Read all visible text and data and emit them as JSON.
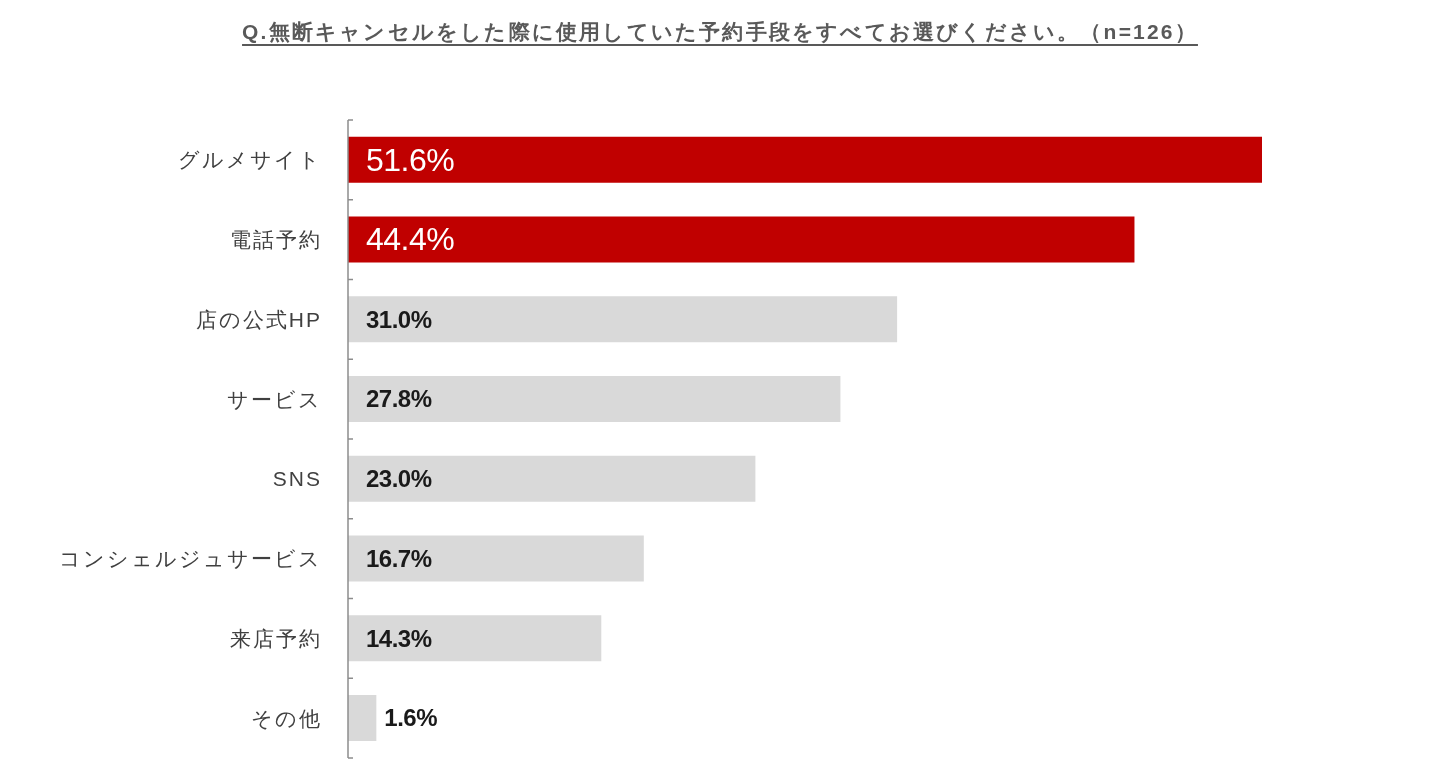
{
  "chart_data": {
    "type": "bar",
    "orientation": "horizontal",
    "title": "Q.無断キャンセルをした際に使用していた予約手段をすべてお選びください。（n=126）",
    "categories": [
      "グルメサイト",
      "電話予約",
      "店の公式HP",
      "サービス",
      "SNS",
      "コンシェルジュサービス",
      "来店予約",
      "その他"
    ],
    "values": [
      51.6,
      44.4,
      31.0,
      27.8,
      23.0,
      16.7,
      14.3,
      1.6
    ],
    "colors": [
      "#c00000",
      "#c00000",
      "#d9d9d9",
      "#d9d9d9",
      "#d9d9d9",
      "#d9d9d9",
      "#d9d9d9",
      "#d9d9d9"
    ],
    "value_labels": [
      "51.6%",
      "44.4%",
      "31.0%",
      "27.8%",
      "23.0%",
      "16.7%",
      "14.3%",
      "1.6%"
    ]
  }
}
